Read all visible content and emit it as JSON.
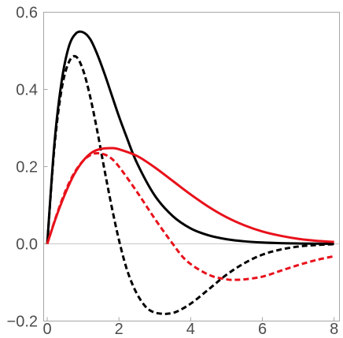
{
  "chart_data": {
    "type": "line",
    "title": "",
    "xlabel": "",
    "ylabel": "",
    "xlim": [
      -0.1,
      8.15
    ],
    "ylim": [
      -0.2,
      0.6
    ],
    "xticks": [
      {
        "value": 0,
        "label": "0"
      },
      {
        "value": 2,
        "label": "2"
      },
      {
        "value": 4,
        "label": "4"
      },
      {
        "value": 6,
        "label": "6"
      },
      {
        "value": 8,
        "label": "8"
      }
    ],
    "yticks": [
      {
        "value": -0.2,
        "label": "−0.2"
      },
      {
        "value": 0.0,
        "label": "0.0"
      },
      {
        "value": 0.2,
        "label": "0.2"
      },
      {
        "value": 0.4,
        "label": "0.4"
      },
      {
        "value": 0.6,
        "label": "0.6"
      }
    ],
    "grid": false,
    "legend": "none",
    "series": [
      {
        "color": "#000000",
        "dashed": false,
        "x": [
          0,
          0.2,
          0.4,
          0.6,
          0.8,
          1.0,
          1.2,
          1.4,
          1.6,
          1.8,
          2.0,
          2.2,
          2.5,
          3.0,
          3.5,
          4.0,
          4.5,
          5.0,
          5.5,
          6.0,
          6.5,
          7.0,
          7.5,
          8.0
        ],
        "y": [
          0,
          0.26,
          0.42,
          0.51,
          0.545,
          0.548,
          0.53,
          0.49,
          0.44,
          0.385,
          0.33,
          0.28,
          0.21,
          0.125,
          0.072,
          0.04,
          0.022,
          0.012,
          0.0065,
          0.0035,
          0.0018,
          0.0009,
          0.0004,
          0.0002
        ]
      },
      {
        "color": "#000000",
        "dashed": true,
        "x": [
          0,
          0.2,
          0.4,
          0.6,
          0.8,
          1.0,
          1.2,
          1.4,
          1.6,
          1.8,
          2.0,
          2.2,
          2.4,
          2.6,
          2.8,
          3.0,
          3.2,
          3.35,
          3.6,
          4.0,
          4.5,
          5.0,
          5.5,
          6.0,
          6.5,
          7.0,
          7.5,
          8.0
        ],
        "y": [
          0,
          0.25,
          0.4,
          0.47,
          0.485,
          0.45,
          0.38,
          0.29,
          0.19,
          0.095,
          0.01,
          -0.06,
          -0.11,
          -0.145,
          -0.168,
          -0.178,
          -0.181,
          -0.181,
          -0.176,
          -0.155,
          -0.118,
          -0.08,
          -0.05,
          -0.028,
          -0.015,
          -0.007,
          -0.003,
          -0.001
        ]
      },
      {
        "color": "#e8111b",
        "dashed": false,
        "x": [
          0,
          0.25,
          0.5,
          0.75,
          1.0,
          1.25,
          1.5,
          1.8,
          2.0,
          2.5,
          3.0,
          3.5,
          4.0,
          4.5,
          5.0,
          5.5,
          6.0,
          6.5,
          7.0,
          7.5,
          8.0
        ],
        "y": [
          0,
          0.07,
          0.13,
          0.18,
          0.215,
          0.237,
          0.246,
          0.248,
          0.245,
          0.228,
          0.198,
          0.163,
          0.128,
          0.096,
          0.069,
          0.048,
          0.032,
          0.021,
          0.013,
          0.008,
          0.005
        ]
      },
      {
        "color": "#e8111b",
        "dashed": true,
        "x": [
          0,
          0.25,
          0.5,
          0.75,
          1.0,
          1.25,
          1.5,
          1.75,
          2.0,
          2.5,
          3.0,
          3.5,
          3.9,
          4.5,
          5.0,
          5.25,
          5.5,
          6.0,
          6.5,
          7.0,
          7.5,
          8.0
        ],
        "y": [
          0,
          0.072,
          0.135,
          0.183,
          0.215,
          0.232,
          0.234,
          0.224,
          0.2,
          0.135,
          0.065,
          0.0,
          -0.045,
          -0.08,
          -0.092,
          -0.093,
          -0.092,
          -0.085,
          -0.07,
          -0.055,
          -0.042,
          -0.032
        ]
      }
    ]
  }
}
